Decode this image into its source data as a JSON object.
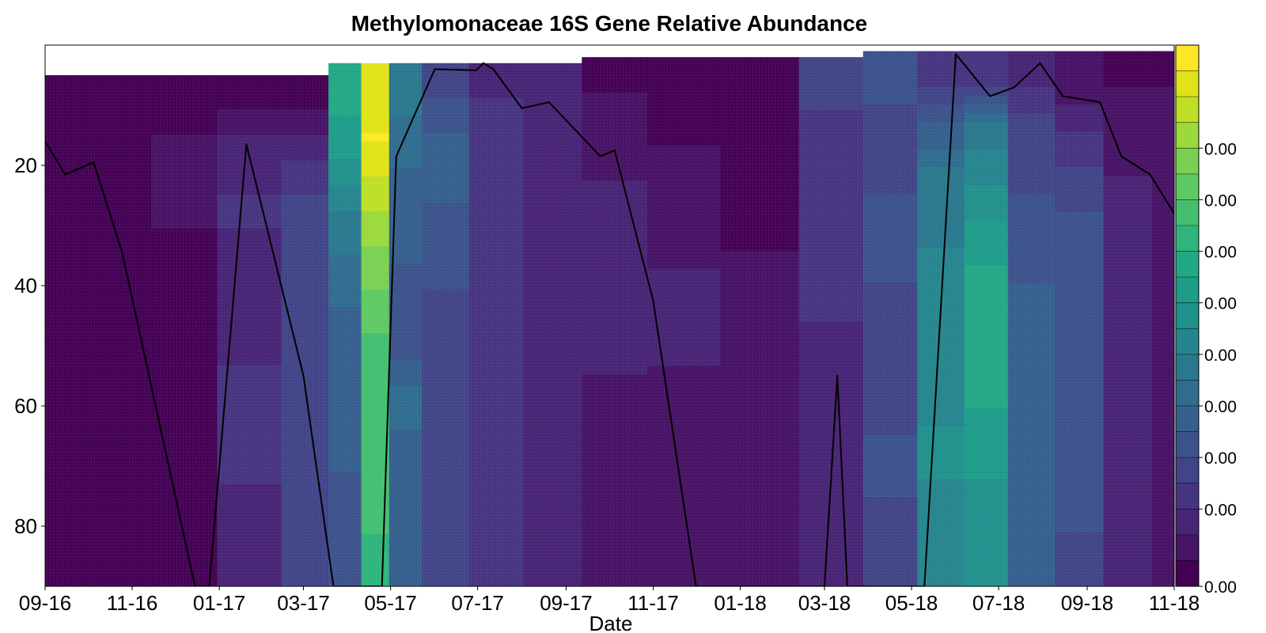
{
  "chart_data": {
    "type": "heatmap",
    "title": "Methylomonaceae 16S Gene Relative Abundance",
    "xlabel": "Date",
    "ylabel": "",
    "x_tick_labels": [
      "09-16",
      "11-16",
      "01-17",
      "03-17",
      "05-17",
      "07-17",
      "09-17",
      "11-17",
      "01-18",
      "03-18",
      "05-18",
      "07-18",
      "09-18",
      "11-18"
    ],
    "x_range": [
      "2016-09-01",
      "2018-11-01"
    ],
    "y_ticks": [
      20,
      40,
      60,
      80
    ],
    "y_range": [
      0,
      90
    ],
    "y_inverted": true,
    "colorbar": {
      "colors": [
        "#440154",
        "#471365",
        "#482475",
        "#463480",
        "#414487",
        "#3b528b",
        "#355f8d",
        "#2f6c8e",
        "#2a788e",
        "#25858e",
        "#21918c",
        "#1e9c89",
        "#22a884",
        "#2fb47c",
        "#44bf70",
        "#5ec962",
        "#7ad151",
        "#9bd93c",
        "#bddf26",
        "#dfe318",
        "#fde725"
      ],
      "tick_labels": [
        "0.00",
        "0.00",
        "0.00",
        "0.00",
        "0.00",
        "0.00",
        "0.00",
        "0.00",
        "0.00"
      ]
    },
    "profiles": [
      {
        "date": "2016-09-01",
        "surface": 5,
        "column": [
          0,
          0,
          0,
          0,
          0,
          0,
          0,
          0,
          0,
          0
        ]
      },
      {
        "date": "2016-10-25",
        "surface": 5,
        "column": [
          0,
          0,
          0,
          0,
          0,
          0,
          0,
          0,
          0,
          0
        ]
      },
      {
        "date": "2016-12-05",
        "surface": 5,
        "column": [
          0,
          0.04,
          0.03,
          0.02,
          0.02,
          0.02,
          0.02,
          0.02,
          0.02,
          0.02
        ]
      },
      {
        "date": "2017-01-25",
        "surface": 5,
        "column": [
          0,
          0.1,
          0.13,
          0.12,
          0.11,
          0.12,
          0.14,
          0.13,
          0.12,
          0.12
        ]
      },
      {
        "date": "2017-03-05",
        "surface": 5,
        "column": [
          0,
          0.12,
          0.18,
          0.2,
          0.2,
          0.2,
          0.22,
          0.2,
          0.18,
          0.18
        ]
      },
      {
        "date": "2017-04-01",
        "surface": 3,
        "column": [
          0.6,
          0.55,
          0.45,
          0.38,
          0.33,
          0.3,
          0.28,
          0.28,
          0.26,
          0.26
        ]
      },
      {
        "date": "2017-04-20",
        "surface": 3,
        "column": [
          0.93,
          0.98,
          0.9,
          0.82,
          0.76,
          0.7,
          0.7,
          0.72,
          0.7,
          0.65
        ]
      },
      {
        "date": "2017-05-10",
        "surface": 3,
        "column": [
          0.4,
          0.35,
          0.3,
          0.28,
          0.26,
          0.26,
          0.35,
          0.3,
          0.3,
          0.3
        ]
      },
      {
        "date": "2017-06-05",
        "surface": 3,
        "column": [
          0.2,
          0.3,
          0.28,
          0.25,
          0.22,
          0.22,
          0.2,
          0.18,
          0.18,
          0.18
        ]
      },
      {
        "date": "2017-07-15",
        "surface": 3,
        "column": [
          0.12,
          0.15,
          0.15,
          0.15,
          0.14,
          0.14,
          0.16,
          0.17,
          0.15,
          0.14
        ]
      },
      {
        "date": "2017-08-20",
        "surface": 3,
        "column": [
          0.08,
          0.08,
          0.08,
          0.08,
          0.08,
          0.09,
          0.09,
          0.09,
          0.09,
          0.09
        ]
      },
      {
        "date": "2017-10-05",
        "surface": 2,
        "column": [
          0.02,
          0.04,
          0.08,
          0.08,
          0.08,
          0.08,
          0.07,
          0.07,
          0.07,
          0.07
        ]
      },
      {
        "date": "2017-11-20",
        "surface": 2,
        "column": [
          0,
          0.02,
          0.04,
          0.07,
          0.08,
          0.08,
          0.06,
          0.05,
          0.04,
          0.04
        ]
      },
      {
        "date": "2018-01-15",
        "surface": 2,
        "column": [
          0,
          0,
          0,
          0.02,
          0.04,
          0.05,
          0.05,
          0.05,
          0.05,
          0.05
        ]
      },
      {
        "date": "2018-03-10",
        "surface": 2,
        "column": [
          0.2,
          0.15,
          0.14,
          0.14,
          0.13,
          0.12,
          0.12,
          0.12,
          0.11,
          0.11
        ]
      },
      {
        "date": "2018-04-15",
        "surface": 1,
        "column": [
          0.25,
          0.2,
          0.22,
          0.25,
          0.22,
          0.2,
          0.2,
          0.24,
          0.22,
          0.2
        ]
      },
      {
        "date": "2018-05-25",
        "surface": 1,
        "column": [
          0.15,
          0.3,
          0.4,
          0.42,
          0.45,
          0.45,
          0.45,
          0.5,
          0.45,
          0.43
        ]
      },
      {
        "date": "2018-06-20",
        "surface": 1,
        "column": [
          0.15,
          0.4,
          0.48,
          0.55,
          0.6,
          0.62,
          0.58,
          0.55,
          0.5,
          0.48
        ]
      },
      {
        "date": "2018-07-25",
        "surface": 1,
        "column": [
          0.1,
          0.22,
          0.22,
          0.25,
          0.28,
          0.3,
          0.3,
          0.3,
          0.28,
          0.28
        ]
      },
      {
        "date": "2018-08-25",
        "surface": 1,
        "column": [
          0.03,
          0.12,
          0.2,
          0.25,
          0.27,
          0.27,
          0.25,
          0.25,
          0.23,
          0.22
        ]
      },
      {
        "date": "2018-10-01",
        "surface": 1,
        "column": [
          0.02,
          0.05,
          0.08,
          0.1,
          0.1,
          0.1,
          0.1,
          0.1,
          0.08,
          0.08
        ]
      },
      {
        "date": "2018-11-01",
        "surface": 1,
        "column": [
          0.02,
          0.05,
          0.05,
          0.06,
          0.06,
          0.06,
          0.06,
          0.06,
          0.06,
          0.06
        ]
      }
    ],
    "line": {
      "color": "#000000",
      "points": [
        [
          "2016-09-01",
          16
        ],
        [
          "2016-09-15",
          21.5
        ],
        [
          "2016-10-05",
          19.5
        ],
        [
          "2016-10-25",
          34.5
        ],
        [
          "2016-12-15",
          90
        ],
        [
          "2016-12-25",
          90
        ],
        [
          "2017-01-20",
          16.5
        ],
        [
          "2017-03-01",
          55
        ],
        [
          "2017-03-22",
          90
        ],
        [
          "2017-04-25",
          90
        ],
        [
          "2017-05-05",
          18.5
        ],
        [
          "2017-06-01",
          4
        ],
        [
          "2017-06-30",
          4.2
        ],
        [
          "2017-07-05",
          3
        ],
        [
          "2017-07-12",
          4
        ],
        [
          "2017-08-01",
          10.5
        ],
        [
          "2017-08-20",
          9.5
        ],
        [
          "2017-09-25",
          18.5
        ],
        [
          "2017-10-05",
          17.5
        ],
        [
          "2017-11-01",
          42.5
        ],
        [
          "2017-12-01",
          90
        ],
        [
          "2018-03-01",
          90
        ],
        [
          "2018-03-10",
          55
        ],
        [
          "2018-03-17",
          90
        ],
        [
          "2018-05-10",
          90
        ],
        [
          "2018-06-01",
          1.5
        ],
        [
          "2018-06-25",
          8.5
        ],
        [
          "2018-07-12",
          7
        ],
        [
          "2018-07-30",
          3
        ],
        [
          "2018-08-15",
          8.5
        ],
        [
          "2018-09-10",
          9.5
        ],
        [
          "2018-09-25",
          18.5
        ],
        [
          "2018-10-15",
          21.5
        ],
        [
          "2018-11-01",
          28
        ]
      ]
    }
  }
}
